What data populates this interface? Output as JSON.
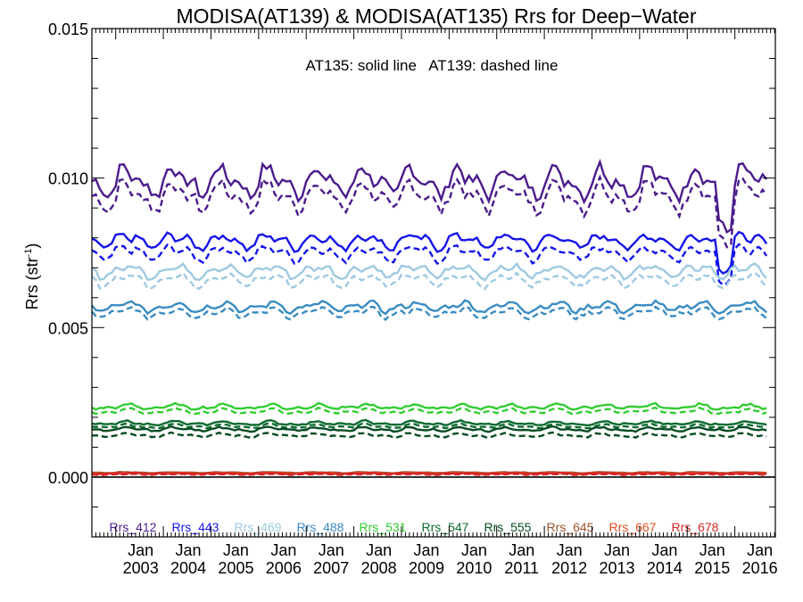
{
  "chart_data": {
    "type": "line",
    "title": "MODISA(AT139) & MODISA(AT135)  Rrs for Deep−Water",
    "annotation": "AT135: solid line   AT139: dashed line",
    "ylabel_main": "Rrs (str",
    "ylabel_sup": "-1",
    "ylabel_end": ")",
    "ylim": [
      -0.002,
      0.015
    ],
    "xlim": [
      2002.5,
      2016.85
    ],
    "yticks": [
      "0.015",
      "0.010",
      "0.005",
      "0.000"
    ],
    "xticks": [
      {
        "month": "Jan",
        "year": "2003"
      },
      {
        "month": "Jan",
        "year": "2004"
      },
      {
        "month": "Jan",
        "year": "2005"
      },
      {
        "month": "Jan",
        "year": "2006"
      },
      {
        "month": "Jan",
        "year": "2007"
      },
      {
        "month": "Jan",
        "year": "2008"
      },
      {
        "month": "Jan",
        "year": "2009"
      },
      {
        "month": "Jan",
        "year": "2010"
      },
      {
        "month": "Jan",
        "year": "2011"
      },
      {
        "month": "Jan",
        "year": "2012"
      },
      {
        "month": "Jan",
        "year": "2013"
      },
      {
        "month": "Jan",
        "year": "2014"
      },
      {
        "month": "Jan",
        "year": "2015"
      },
      {
        "month": "Jan",
        "year": "2016"
      }
    ],
    "zero_line": 0.0,
    "series": [
      {
        "name": "Rrs_412",
        "color": "#4b1b8c",
        "mean_solid": 0.0099,
        "mean_dashed": 0.0094,
        "amplitude": 0.0006
      },
      {
        "name": "Rrs_443",
        "color": "#1515e8",
        "mean_solid": 0.0079,
        "mean_dashed": 0.0075,
        "amplitude": 0.0003
      },
      {
        "name": "Rrs_469",
        "color": "#9ecae1",
        "mean_solid": 0.0069,
        "mean_dashed": 0.0066,
        "amplitude": 0.00025
      },
      {
        "name": "Rrs_488",
        "color": "#3a8cc2",
        "mean_solid": 0.0057,
        "mean_dashed": 0.0055,
        "amplitude": 0.0002
      },
      {
        "name": "Rrs_531",
        "color": "#33cc33",
        "mean_solid": 0.00235,
        "mean_dashed": 0.0022,
        "amplitude": 0.0001
      },
      {
        "name": "Rrs_547",
        "color": "#0d6b30",
        "mean_solid": 0.0018,
        "mean_dashed": 0.0017,
        "amplitude": 8e-05
      },
      {
        "name": "Rrs_555",
        "color": "#084d22",
        "mean_solid": 0.0016,
        "mean_dashed": 0.0014,
        "amplitude": 8e-05
      },
      {
        "name": "Rrs_645",
        "color": "#a0522d",
        "mean_solid": 0.00015,
        "mean_dashed": 0.00012,
        "amplitude": 2e-05
      },
      {
        "name": "Rrs_667",
        "color": "#e0501e",
        "mean_solid": 0.00013,
        "mean_dashed": 0.0001,
        "amplitude": 2e-05
      },
      {
        "name": "Rrs_678",
        "color": "#d62828",
        "mean_solid": 0.00012,
        "mean_dashed": 9e-05,
        "amplitude": 2e-05
      }
    ]
  }
}
